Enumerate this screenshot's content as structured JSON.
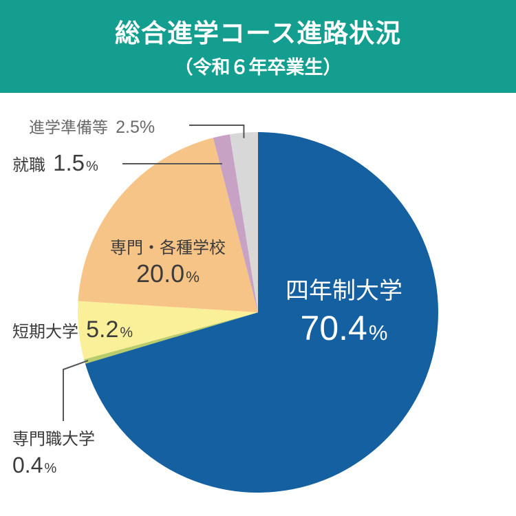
{
  "title": "総合進学コース進路状況",
  "subtitle": "（令和６年卒業生）",
  "colors": {
    "header_bg": "#149e8f",
    "text": "#3c3c3c",
    "leader_line": "#555555"
  },
  "chart_data": {
    "type": "pie",
    "title": "総合進学コース進路状況",
    "subtitle": "（令和６年卒業生）",
    "start": "12 o'clock",
    "direction": "clockwise",
    "slices": [
      {
        "label": "四年制大学",
        "value": 70.4,
        "display": "70.4",
        "unit": "%",
        "color": "#1460a0"
      },
      {
        "label": "専門職大学",
        "value": 0.4,
        "display": "0.4",
        "unit": "%",
        "color": "#b9cc6b"
      },
      {
        "label": "短期大学",
        "value": 5.2,
        "display": "5.2",
        "unit": "%",
        "color": "#fbf09a"
      },
      {
        "label": "専門・各種学校",
        "value": 20.0,
        "display": "20.0",
        "unit": "%",
        "color": "#f6c486"
      },
      {
        "label": "就職",
        "value": 1.5,
        "display": "1.5",
        "unit": "%",
        "color": "#c7a2c5"
      },
      {
        "label": "進学準備等",
        "value": 2.5,
        "display": "2.5",
        "unit": "%",
        "color": "#d8d8d8"
      }
    ]
  }
}
